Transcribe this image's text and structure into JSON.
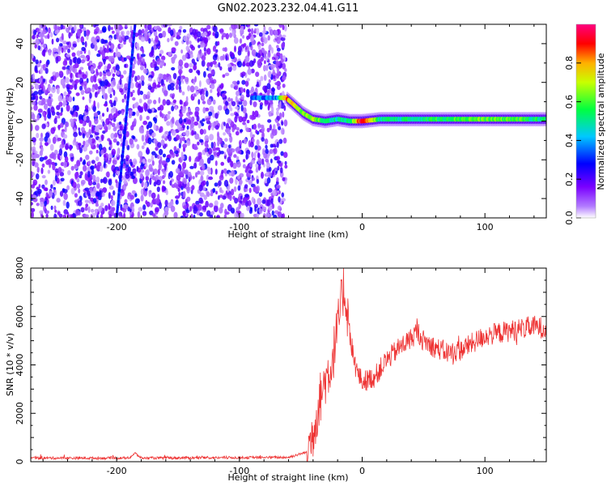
{
  "figure_title": "GN02.2023.232.04.41.G11",
  "chart_data": [
    {
      "type": "heatmap",
      "xlabel": "Height of straight line (km)",
      "ylabel": "Frequency (Hz)",
      "xlim": [
        -270,
        150
      ],
      "ylim": [
        -50,
        50
      ],
      "x_ticks": [
        -200,
        -100,
        0,
        100
      ],
      "y_ticks": [
        -40,
        -20,
        0,
        20,
        40
      ],
      "colorbar": {
        "label": "Normalized spectral amplitude",
        "range": [
          0,
          1
        ],
        "ticks": [
          0.0,
          0.2,
          0.4,
          0.6,
          0.8
        ],
        "tick_labels": [
          "0.0",
          "0.2",
          "0.4",
          "0.6",
          "0.8"
        ],
        "colormap": [
          "#ffffff",
          "#8a2be2",
          "#0000ff",
          "#00ffff",
          "#00ff00",
          "#ffff00",
          "#ff0000",
          "#ff00aa"
        ]
      },
      "noise_region_x": [
        -270,
        -62
      ],
      "ridge": {
        "description_points_x": [
          -90,
          -80,
          -70,
          -62,
          -55,
          -48,
          -40,
          -30,
          -20,
          -10,
          0,
          15,
          40,
          80,
          120,
          150
        ],
        "frequency_hz": [
          12,
          12,
          12,
          12,
          8,
          4,
          1,
          0,
          1,
          0,
          0,
          1,
          1,
          1,
          1,
          1
        ],
        "amplitude": [
          0.3,
          0.35,
          0.4,
          0.85,
          0.7,
          0.6,
          0.7,
          0.5,
          0.5,
          0.5,
          0.95,
          0.5,
          0.5,
          0.6,
          0.6,
          0.5
        ]
      },
      "streak": {
        "x": [
          -200,
          -185
        ],
        "frequency_hz": [
          -50,
          50
        ]
      }
    },
    {
      "type": "line",
      "xlabel": "Height of straight line (km)",
      "ylabel": "SNR (10 * v/v)",
      "xlim": [
        -270,
        150
      ],
      "ylim": [
        0,
        8000
      ],
      "x_ticks": [
        -200,
        -100,
        0,
        100
      ],
      "y_ticks": [
        0,
        2000,
        4000,
        6000,
        8000
      ],
      "series_color": "#ee3333",
      "key_points": {
        "x": [
          -270,
          -190,
          -185,
          -180,
          -60,
          -45,
          -40,
          -35,
          -30,
          -25,
          -20,
          -15,
          -12,
          -10,
          -5,
          0,
          10,
          20,
          30,
          40,
          45,
          50,
          60,
          70,
          80,
          90,
          100,
          110,
          120,
          130,
          140,
          150
        ],
        "y": [
          150,
          150,
          350,
          150,
          180,
          400,
          1200,
          2500,
          3400,
          4000,
          5500,
          7200,
          6200,
          5200,
          3800,
          3300,
          3500,
          4200,
          4700,
          5100,
          5400,
          5000,
          4700,
          4500,
          4600,
          4900,
          5200,
          5300,
          5400,
          5500,
          5600,
          5500
        ]
      }
    }
  ]
}
